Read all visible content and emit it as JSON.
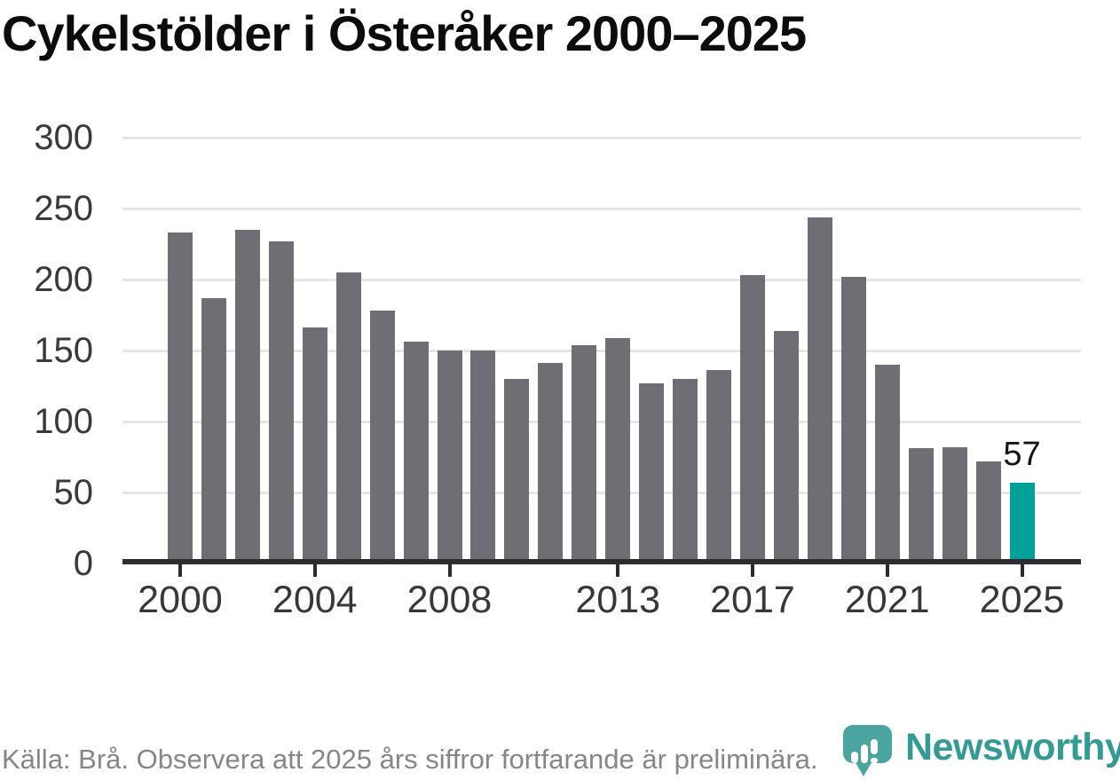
{
  "title": "Cykelstölder i Österåker 2000–2025",
  "source_note": "Källa: Brå. Observera att 2025 års siffror fortfarande är preliminära.",
  "branding": {
    "name": "Newsworthy"
  },
  "annotation": {
    "label": "57"
  },
  "colors": {
    "bar": "#6f6e74",
    "highlight": "#00a298",
    "grid": "#e5e5e8",
    "axis": "#2d2d2f",
    "title": "#0c0c0c",
    "tick_label": "#37373c",
    "source_text": "#85858d",
    "brand_teal": "#339a94"
  },
  "chart_data": {
    "type": "bar",
    "title": "Cykelstölder i Österåker 2000–2025",
    "x": [
      2000,
      2001,
      2002,
      2003,
      2004,
      2005,
      2006,
      2007,
      2008,
      2009,
      2010,
      2011,
      2012,
      2013,
      2014,
      2015,
      2016,
      2017,
      2018,
      2019,
      2020,
      2021,
      2022,
      2023,
      2024,
      2025
    ],
    "values": [
      233,
      187,
      235,
      227,
      166,
      205,
      178,
      156,
      150,
      150,
      130,
      141,
      154,
      159,
      127,
      130,
      136,
      203,
      164,
      244,
      202,
      140,
      81,
      82,
      72,
      57
    ],
    "highlight_year": 2025,
    "highlight_value_label": "57",
    "xlabel": "",
    "ylabel": "",
    "ylim": [
      0,
      300
    ],
    "yticks": [
      0,
      50,
      100,
      150,
      200,
      250,
      300
    ],
    "xtick_labels": [
      2000,
      2004,
      2008,
      2013,
      2017,
      2021,
      2025
    ],
    "grid": "horizontal",
    "legend": "none"
  }
}
